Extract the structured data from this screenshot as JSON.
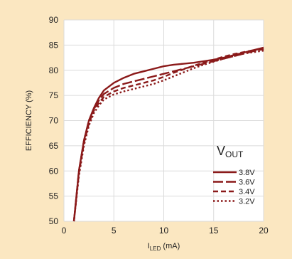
{
  "colors": {
    "background": "#fbe7c1",
    "plot_background": "#ffffff",
    "grid": "#dbdbdb",
    "series": "#8b1a1a"
  },
  "chart_data": {
    "type": "line",
    "xlabel_main": "I",
    "xlabel_sub": "LED",
    "xlabel_unit": " (mA)",
    "ylabel": "EFFICIENCY (%)",
    "xlim": [
      0,
      20
    ],
    "ylim": [
      50,
      90
    ],
    "xticks": [
      "0",
      "5",
      "10",
      "15",
      "20"
    ],
    "yticks": [
      "50",
      "55",
      "60",
      "65",
      "70",
      "75",
      "80",
      "85",
      "90"
    ],
    "grid": true,
    "legend": {
      "title_main": "V",
      "title_sub": "OUT",
      "placement": "bottom-right"
    },
    "series": [
      {
        "name": "3.8V",
        "dash": "solid",
        "points": [
          [
            1,
            50
          ],
          [
            1.5,
            60
          ],
          [
            2,
            66
          ],
          [
            2.5,
            70
          ],
          [
            3,
            72.5
          ],
          [
            3.5,
            74.5
          ],
          [
            4,
            76
          ],
          [
            5,
            77.5
          ],
          [
            6,
            78.5
          ],
          [
            7,
            79.3
          ],
          [
            8,
            79.8
          ],
          [
            9,
            80.3
          ],
          [
            10,
            80.8
          ],
          [
            11,
            81.1
          ],
          [
            12,
            81.3
          ],
          [
            13,
            81.5
          ],
          [
            14,
            81.8
          ],
          [
            15,
            82.1
          ],
          [
            16,
            82.5
          ],
          [
            17,
            83.0
          ],
          [
            18,
            83.5
          ],
          [
            19,
            84.0
          ],
          [
            20,
            84.5
          ]
        ]
      },
      {
        "name": "3.6V",
        "dash": "long-dash",
        "points": [
          [
            1,
            50
          ],
          [
            1.5,
            60
          ],
          [
            2,
            66
          ],
          [
            2.5,
            70
          ],
          [
            3,
            72.3
          ],
          [
            3.5,
            74
          ],
          [
            4,
            75.3
          ],
          [
            5,
            76.5
          ],
          [
            6,
            77.3
          ],
          [
            7,
            77.8
          ],
          [
            8,
            78.3
          ],
          [
            9,
            78.8
          ],
          [
            10,
            79.3
          ],
          [
            11,
            79.8
          ],
          [
            12,
            80.3
          ],
          [
            13,
            80.8
          ],
          [
            14,
            81.3
          ],
          [
            15,
            81.8
          ],
          [
            16,
            82.3
          ],
          [
            17,
            82.8
          ],
          [
            18,
            83.3
          ],
          [
            19,
            83.8
          ],
          [
            20,
            84.2
          ]
        ]
      },
      {
        "name": "3.4V",
        "dash": "dash",
        "points": [
          [
            1,
            50
          ],
          [
            1.5,
            59.5
          ],
          [
            2,
            65.5
          ],
          [
            2.5,
            69.5
          ],
          [
            3,
            72
          ],
          [
            3.5,
            73.5
          ],
          [
            4,
            74.7
          ],
          [
            5,
            75.8
          ],
          [
            6,
            76.5
          ],
          [
            7,
            77
          ],
          [
            8,
            77.5
          ],
          [
            9,
            78
          ],
          [
            10,
            78.7
          ],
          [
            11,
            79.5
          ],
          [
            12,
            80.2
          ],
          [
            13,
            80.9
          ],
          [
            14,
            81.5
          ],
          [
            15,
            82.1
          ],
          [
            16,
            82.7
          ],
          [
            17,
            83.2
          ],
          [
            18,
            83.6
          ],
          [
            19,
            84
          ],
          [
            20,
            84.3
          ]
        ]
      },
      {
        "name": "3.2V",
        "dash": "dot",
        "points": [
          [
            1,
            50
          ],
          [
            1.5,
            59
          ],
          [
            2,
            65
          ],
          [
            2.5,
            69
          ],
          [
            3,
            71.5
          ],
          [
            3.5,
            73
          ],
          [
            4,
            74.2
          ],
          [
            5,
            75.2
          ],
          [
            6,
            75.8
          ],
          [
            7,
            76.3
          ],
          [
            8,
            76.8
          ],
          [
            9,
            77.3
          ],
          [
            10,
            78
          ],
          [
            11,
            78.8
          ],
          [
            12,
            79.6
          ],
          [
            13,
            80.4
          ],
          [
            14,
            81.1
          ],
          [
            15,
            81.7
          ],
          [
            16,
            82.3
          ],
          [
            17,
            82.8
          ],
          [
            18,
            83.3
          ],
          [
            19,
            83.6
          ],
          [
            20,
            83.9
          ]
        ]
      }
    ]
  }
}
